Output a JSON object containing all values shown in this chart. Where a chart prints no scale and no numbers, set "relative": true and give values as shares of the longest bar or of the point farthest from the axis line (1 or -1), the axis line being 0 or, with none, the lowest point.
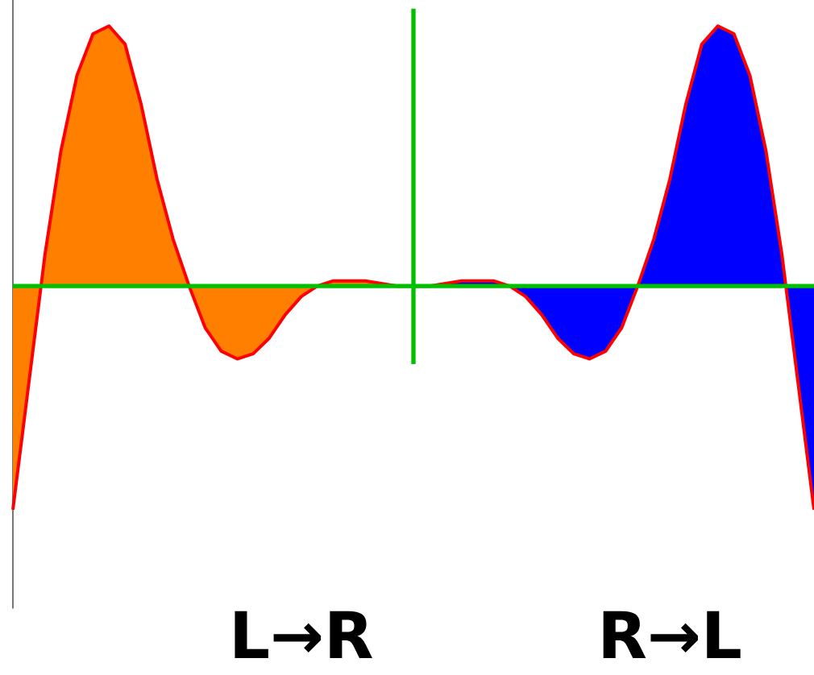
{
  "chart_data": {
    "type": "area",
    "relative": true,
    "categories": [
      null,
      null,
      null,
      null,
      null,
      null,
      null,
      null,
      null,
      null,
      null,
      null,
      null,
      null,
      null,
      null,
      null,
      null,
      null,
      null,
      null,
      null,
      null,
      null,
      null,
      null,
      null,
      null,
      null,
      null,
      null,
      null,
      null,
      null,
      null,
      null,
      null,
      null,
      null,
      null,
      null,
      null,
      null,
      null,
      null,
      null,
      null,
      null,
      null,
      null,
      null
    ],
    "series": [
      {
        "color": "#ff8000",
        "values": [
          -0.86,
          -0.37,
          0.12,
          0.52,
          0.81,
          0.97,
          1.0,
          0.93,
          0.7,
          0.41,
          0.18,
          0.0,
          -0.16,
          -0.25,
          -0.28,
          -0.26,
          -0.2,
          -0.11,
          -0.04,
          0.0,
          0.02,
          0.02,
          0.02,
          0.01,
          0.0,
          0.0,
          null,
          null,
          null,
          null,
          null,
          null,
          null,
          null,
          null,
          null,
          null,
          null,
          null,
          null,
          null,
          null,
          null,
          null,
          null,
          null,
          null,
          null,
          null,
          null,
          null
        ]
      },
      {
        "color": "#0000ff",
        "values": [
          null,
          null,
          null,
          null,
          null,
          null,
          null,
          null,
          null,
          null,
          null,
          null,
          null,
          null,
          null,
          null,
          null,
          null,
          null,
          null,
          null,
          null,
          null,
          null,
          null,
          0.0,
          0.0,
          0.01,
          0.02,
          0.02,
          0.02,
          0.0,
          -0.04,
          -0.11,
          -0.2,
          -0.26,
          -0.28,
          -0.25,
          -0.16,
          0.0,
          0.18,
          0.41,
          0.7,
          0.93,
          1.0,
          0.97,
          0.81,
          0.52,
          0.12,
          -0.37,
          -0.86
        ]
      },
      {
        "type": "line",
        "color": "#ff0000",
        "values": [
          -0.86,
          -0.37,
          0.12,
          0.52,
          0.81,
          0.97,
          1.0,
          0.93,
          0.7,
          0.41,
          0.18,
          0.0,
          -0.16,
          -0.25,
          -0.28,
          -0.26,
          -0.2,
          -0.11,
          -0.04,
          0.0,
          0.02,
          0.02,
          0.02,
          0.01,
          0.0,
          0.0,
          0.0,
          0.01,
          0.02,
          0.02,
          0.02,
          0.0,
          -0.04,
          -0.11,
          -0.2,
          -0.26,
          -0.28,
          -0.25,
          -0.16,
          0.0,
          0.18,
          0.41,
          0.7,
          0.93,
          1.0,
          0.97,
          0.81,
          0.52,
          0.12,
          -0.37,
          -0.86
        ]
      }
    ],
    "ref_lines": [
      {
        "axis": "y",
        "value": 0,
        "color": "#00c000"
      }
    ],
    "annotations": [
      "L→R",
      "R→L"
    ]
  }
}
